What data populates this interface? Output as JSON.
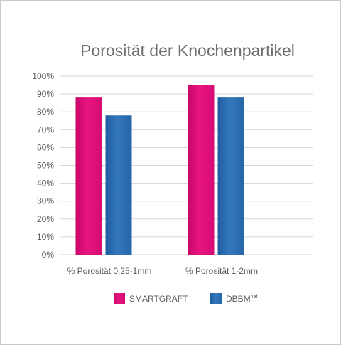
{
  "chart_data": {
    "type": "bar",
    "title": "Porosität der Knochenpartikel",
    "categories": [
      "% Porosität 0,25-1mm",
      "% Porosität 1-2mm"
    ],
    "series": [
      {
        "name": "SMARTGRAFT",
        "values": [
          88,
          95
        ],
        "color": "#e0137a"
      },
      {
        "name": "DBBM",
        "name_sup": "nat",
        "values": [
          78,
          88
        ],
        "color": "#2e6fb4"
      }
    ],
    "ylim": [
      0,
      100
    ],
    "yticks": [
      "0%",
      "10%",
      "20%",
      "30%",
      "40%",
      "50%",
      "60%",
      "70%",
      "80%",
      "90%",
      "100%"
    ],
    "grid": true,
    "legend": "bottom",
    "xlabel": "",
    "ylabel": ""
  }
}
